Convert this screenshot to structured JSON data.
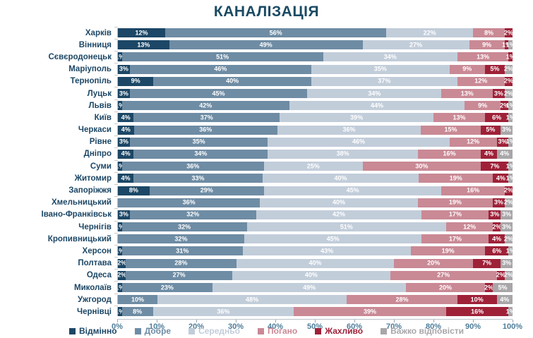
{
  "title": "КАНАЛІЗАЦІЯ",
  "colors": {
    "excellent": "#1c4766",
    "good": "#6e8ca4",
    "average": "#c2cdda",
    "bad": "#c98995",
    "terrible": "#9e2138",
    "hard_to_answer": "#a9a6a9",
    "title_text": "#1a4a63",
    "axis_text": "#4d7d99",
    "category_text": "#1c4766"
  },
  "x_axis": {
    "ticks": [
      "0%",
      "10%",
      "20%",
      "30%",
      "40%",
      "50%",
      "60%",
      "70%",
      "80%",
      "90%",
      "100%"
    ]
  },
  "legend": [
    {
      "label": "Відмінно",
      "color": "#1c4766"
    },
    {
      "label": "Добре",
      "color": "#6e8ca4"
    },
    {
      "label": "Середньо",
      "color": "#c2cdda"
    },
    {
      "label": "Погано",
      "color": "#c98995"
    },
    {
      "label": "Жахливо",
      "color": "#9e2138"
    },
    {
      "label": "Важко відповісти",
      "color": "#a9a6a9"
    }
  ],
  "chart_data": {
    "type": "bar",
    "orientation": "horizontal",
    "stacked": true,
    "title": "КАНАЛІЗАЦІЯ",
    "xlabel": "",
    "ylabel": "",
    "xlim": [
      0,
      100
    ],
    "value_suffix": "%",
    "grid": false,
    "legend_position": "bottom",
    "categories": [
      "Харків",
      "Вінниця",
      "Сєвєродонецьк",
      "Маріуполь",
      "Тернопіль",
      "Луцьк",
      "Львів",
      "Київ",
      "Черкаси",
      "Рівне",
      "Дніпро",
      "Суми",
      "Житомир",
      "Запоріжжя",
      "Хмельницький",
      "Івано-Франківськ",
      "Чернігів",
      "Кропивницький",
      "Херсон",
      "Полтава",
      "Одеса",
      "Миколаїв",
      "Ужгород",
      "Чернівці"
    ],
    "series": [
      {
        "name": "Відмінно",
        "color": "#1c4766",
        "values": [
          12,
          13,
          1,
          3,
          9,
          3,
          1,
          4,
          4,
          3,
          4,
          1,
          4,
          8,
          0,
          3,
          1,
          0,
          1,
          2,
          2,
          1,
          0,
          1
        ]
      },
      {
        "name": "Добре",
        "color": "#6e8ca4",
        "values": [
          56,
          49,
          51,
          46,
          40,
          45,
          42,
          37,
          36,
          35,
          34,
          36,
          33,
          29,
          36,
          32,
          32,
          32,
          31,
          28,
          27,
          23,
          10,
          8
        ]
      },
      {
        "name": "Середньо",
        "color": "#c2cdda",
        "values": [
          22,
          27,
          34,
          35,
          37,
          34,
          44,
          39,
          36,
          46,
          38,
          25,
          40,
          45,
          40,
          42,
          51,
          45,
          43,
          40,
          40,
          49,
          48,
          36
        ]
      },
      {
        "name": "Погано",
        "color": "#c98995",
        "values": [
          8,
          9,
          13,
          9,
          12,
          13,
          9,
          13,
          15,
          12,
          16,
          30,
          19,
          16,
          19,
          17,
          12,
          17,
          19,
          20,
          27,
          20,
          28,
          39
        ]
      },
      {
        "name": "Жахливо",
        "color": "#9e2138",
        "values": [
          2,
          1,
          1,
          5,
          2,
          3,
          2,
          6,
          5,
          3,
          4,
          7,
          4,
          2,
          3,
          3,
          2,
          4,
          6,
          7,
          2,
          2,
          10,
          16
        ]
      },
      {
        "name": "Важко відповісти",
        "color": "#a9a6a9",
        "values": [
          0,
          1,
          0,
          2,
          0,
          2,
          1,
          1,
          3,
          1,
          4,
          1,
          1,
          0,
          2,
          3,
          3,
          2,
          1,
          3,
          2,
          5,
          4,
          1
        ]
      }
    ]
  }
}
